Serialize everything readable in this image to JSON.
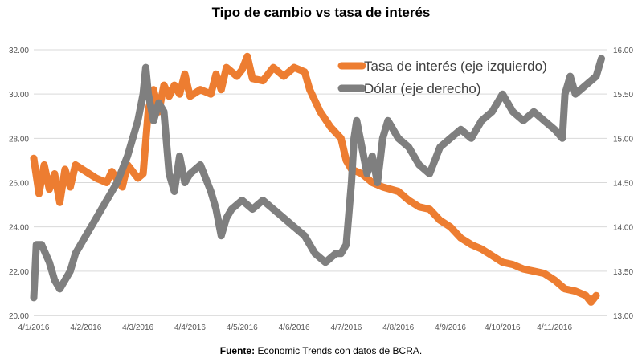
{
  "chart_data": {
    "type": "line",
    "title": "Tipo de cambio vs tasa de interés",
    "source_label": "Fuente:",
    "source_text": " Economic Trends con datos de BCRA.",
    "x_ticks": [
      "4/1/2016",
      "4/2/2016",
      "4/3/2016",
      "4/4/2016",
      "4/5/2016",
      "4/6/2016",
      "4/7/2016",
      "4/8/2016",
      "4/9/2016",
      "4/10/2016",
      "4/11/2016"
    ],
    "y_left": {
      "min": 20,
      "max": 32,
      "ticks": [
        "20.00",
        "22.00",
        "24.00",
        "26.00",
        "28.00",
        "30.00",
        "32.00"
      ]
    },
    "y_right": {
      "min": 13.0,
      "max": 16.0,
      "ticks": [
        "13.00",
        "13.50",
        "14.00",
        "14.50",
        "15.00",
        "15.50",
        "16.00"
      ]
    },
    "grid": true,
    "legend_position": "top-right",
    "series": [
      {
        "name": "Tasa de interés (eje izquierdo)",
        "axis": "left",
        "color": "#ED7D31",
        "points": [
          [
            0,
            27.1
          ],
          [
            0.1,
            25.5
          ],
          [
            0.2,
            26.8
          ],
          [
            0.3,
            25.7
          ],
          [
            0.4,
            26.4
          ],
          [
            0.5,
            25.1
          ],
          [
            0.6,
            26.6
          ],
          [
            0.7,
            25.8
          ],
          [
            0.8,
            26.8
          ],
          [
            1.0,
            26.5
          ],
          [
            1.2,
            26.2
          ],
          [
            1.4,
            26.0
          ],
          [
            1.5,
            26.5
          ],
          [
            1.7,
            25.8
          ],
          [
            1.8,
            26.8
          ],
          [
            2.0,
            26.2
          ],
          [
            2.1,
            26.4
          ],
          [
            2.2,
            29.3
          ],
          [
            2.3,
            30.2
          ],
          [
            2.4,
            29.2
          ],
          [
            2.5,
            30.4
          ],
          [
            2.6,
            29.9
          ],
          [
            2.7,
            30.4
          ],
          [
            2.8,
            30.0
          ],
          [
            2.9,
            30.9
          ],
          [
            3.0,
            29.9
          ],
          [
            3.2,
            30.2
          ],
          [
            3.4,
            30.0
          ],
          [
            3.5,
            30.9
          ],
          [
            3.6,
            30.2
          ],
          [
            3.7,
            31.2
          ],
          [
            3.9,
            30.8
          ],
          [
            4.0,
            31.1
          ],
          [
            4.1,
            31.7
          ],
          [
            4.2,
            30.7
          ],
          [
            4.4,
            30.6
          ],
          [
            4.6,
            31.2
          ],
          [
            4.8,
            30.8
          ],
          [
            5.0,
            31.2
          ],
          [
            5.2,
            31.0
          ],
          [
            5.3,
            30.2
          ],
          [
            5.5,
            29.2
          ],
          [
            5.7,
            28.5
          ],
          [
            5.9,
            28.0
          ],
          [
            6.0,
            27.0
          ],
          [
            6.1,
            26.6
          ],
          [
            6.3,
            26.4
          ],
          [
            6.5,
            26.0
          ],
          [
            6.7,
            25.8
          ],
          [
            7.0,
            25.6
          ],
          [
            7.2,
            25.2
          ],
          [
            7.4,
            24.9
          ],
          [
            7.6,
            24.8
          ],
          [
            7.8,
            24.3
          ],
          [
            8.0,
            24.0
          ],
          [
            8.2,
            23.5
          ],
          [
            8.4,
            23.2
          ],
          [
            8.6,
            23.0
          ],
          [
            8.8,
            22.7
          ],
          [
            9.0,
            22.4
          ],
          [
            9.2,
            22.3
          ],
          [
            9.4,
            22.1
          ],
          [
            9.6,
            22.0
          ],
          [
            9.8,
            21.9
          ],
          [
            10.0,
            21.6
          ],
          [
            10.2,
            21.2
          ],
          [
            10.4,
            21.1
          ],
          [
            10.6,
            20.9
          ],
          [
            10.7,
            20.6
          ],
          [
            10.8,
            20.9
          ]
        ]
      },
      {
        "name": "Dólar (eje derecho)",
        "axis": "right",
        "color": "#7F7F7F",
        "points": [
          [
            0,
            13.2
          ],
          [
            0.05,
            13.8
          ],
          [
            0.15,
            13.8
          ],
          [
            0.3,
            13.6
          ],
          [
            0.4,
            13.4
          ],
          [
            0.5,
            13.3
          ],
          [
            0.6,
            13.4
          ],
          [
            0.7,
            13.5
          ],
          [
            0.8,
            13.7
          ],
          [
            1.0,
            13.9
          ],
          [
            1.2,
            14.1
          ],
          [
            1.4,
            14.3
          ],
          [
            1.6,
            14.5
          ],
          [
            1.8,
            14.8
          ],
          [
            2.0,
            15.2
          ],
          [
            2.1,
            15.5
          ],
          [
            2.15,
            15.8
          ],
          [
            2.2,
            15.5
          ],
          [
            2.3,
            15.2
          ],
          [
            2.4,
            15.4
          ],
          [
            2.5,
            15.3
          ],
          [
            2.6,
            14.6
          ],
          [
            2.7,
            14.4
          ],
          [
            2.8,
            14.8
          ],
          [
            2.9,
            14.5
          ],
          [
            3.0,
            14.6
          ],
          [
            3.2,
            14.7
          ],
          [
            3.4,
            14.4
          ],
          [
            3.5,
            14.2
          ],
          [
            3.6,
            13.9
          ],
          [
            3.7,
            14.1
          ],
          [
            3.8,
            14.2
          ],
          [
            4.0,
            14.3
          ],
          [
            4.2,
            14.2
          ],
          [
            4.4,
            14.3
          ],
          [
            4.6,
            14.2
          ],
          [
            4.8,
            14.1
          ],
          [
            5.0,
            14.0
          ],
          [
            5.2,
            13.9
          ],
          [
            5.4,
            13.7
          ],
          [
            5.6,
            13.6
          ],
          [
            5.8,
            13.7
          ],
          [
            5.9,
            13.7
          ],
          [
            6.0,
            13.8
          ],
          [
            6.1,
            14.5
          ],
          [
            6.15,
            15.0
          ],
          [
            6.2,
            15.2
          ],
          [
            6.3,
            14.9
          ],
          [
            6.4,
            14.6
          ],
          [
            6.5,
            14.8
          ],
          [
            6.6,
            14.5
          ],
          [
            6.7,
            15.0
          ],
          [
            6.8,
            15.2
          ],
          [
            7.0,
            15.0
          ],
          [
            7.2,
            14.9
          ],
          [
            7.4,
            14.7
          ],
          [
            7.6,
            14.6
          ],
          [
            7.8,
            14.9
          ],
          [
            8.0,
            15.0
          ],
          [
            8.2,
            15.1
          ],
          [
            8.4,
            15.0
          ],
          [
            8.6,
            15.2
          ],
          [
            8.8,
            15.3
          ],
          [
            9.0,
            15.5
          ],
          [
            9.2,
            15.3
          ],
          [
            9.4,
            15.2
          ],
          [
            9.6,
            15.3
          ],
          [
            9.8,
            15.2
          ],
          [
            10.0,
            15.1
          ],
          [
            10.15,
            15.0
          ],
          [
            10.2,
            15.5
          ],
          [
            10.3,
            15.7
          ],
          [
            10.4,
            15.5
          ],
          [
            10.6,
            15.6
          ],
          [
            10.8,
            15.7
          ],
          [
            10.9,
            15.9
          ]
        ]
      }
    ]
  }
}
